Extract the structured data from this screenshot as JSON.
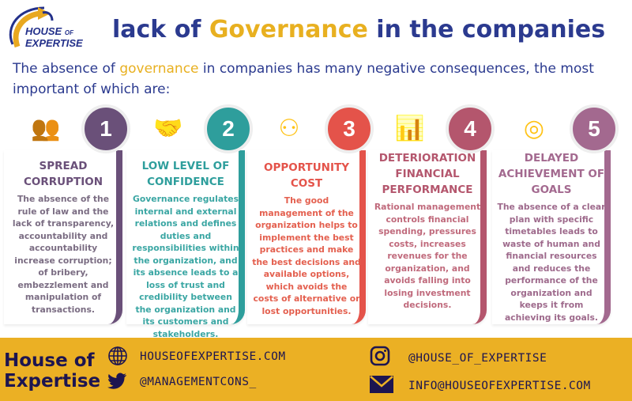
{
  "logo": {
    "line1": "HOUSE",
    "of": "OF",
    "line2": "EXPERTISE"
  },
  "title": {
    "pre": "lack of ",
    "highlight": "Governance",
    "post": " in the companies"
  },
  "intro": {
    "pre": "The absence of ",
    "highlight": "governance",
    "post": " in companies has many negative consequences, the most important of which are:"
  },
  "items": [
    {
      "number": "1",
      "icon": "meeting-icon",
      "color": "#6a5079",
      "text_color": "#7b6d83",
      "title": "SPREAD CORRUPTION",
      "body": "The absence of the rule of law and the lack of transparency, accountability and accountability increase corruption; of bribery, embezzlement and manipulation of transactions."
    },
    {
      "number": "2",
      "icon": "handshake-icon",
      "color": "#2e9e9c",
      "text_color": "#3aa6a3",
      "title": "LOW LEVEL OF CONFIDENCE",
      "body": "Governance regulates internal and external relations and defines duties and responsibilities within the organization, and its absence leads to a loss of trust and credibility between the organization and its customers and stakeholders."
    },
    {
      "number": "3",
      "icon": "organization-icon",
      "color": "#e4534a",
      "text_color": "#e4604f",
      "title": "OPPORTUNITY COST",
      "body": "The good management of the organization helps to implement the best practices and make the best decisions and available options, which avoids the costs of alternative or lost opportunities."
    },
    {
      "number": "4",
      "icon": "bar-chart-icon",
      "color": "#b4566d",
      "text_color": "#c06a7c",
      "title": "DETERIORATION FINANCIAL PERFORMANCE",
      "body": "Rational management controls financial spending, pressures costs, increases revenues for the organization, and avoids falling into losing investment decisions."
    },
    {
      "number": "5",
      "icon": "target-icon",
      "color": "#a3698f",
      "text_color": "#9e6a8c",
      "title": "DELAYED ACHIEVEMENT OF GOALS",
      "body": "The absence of a clear plan with specific timetables leads to waste of human and financial resources and reduces the performance of the organization and keeps it from achieving its goals."
    }
  ],
  "footer": {
    "brand_line1": "House of",
    "brand_line2": "Expertise",
    "website": "HOUSEOFEXPERTISE.COM",
    "twitter": "@MANAGEMENTCONS_",
    "instagram": "@HOUSE_OF_EXPERTISE",
    "email": "INFO@HOUSEOFEXPERTISE.COM",
    "bg_color": "#ebb024",
    "text_color": "#1d1550"
  }
}
